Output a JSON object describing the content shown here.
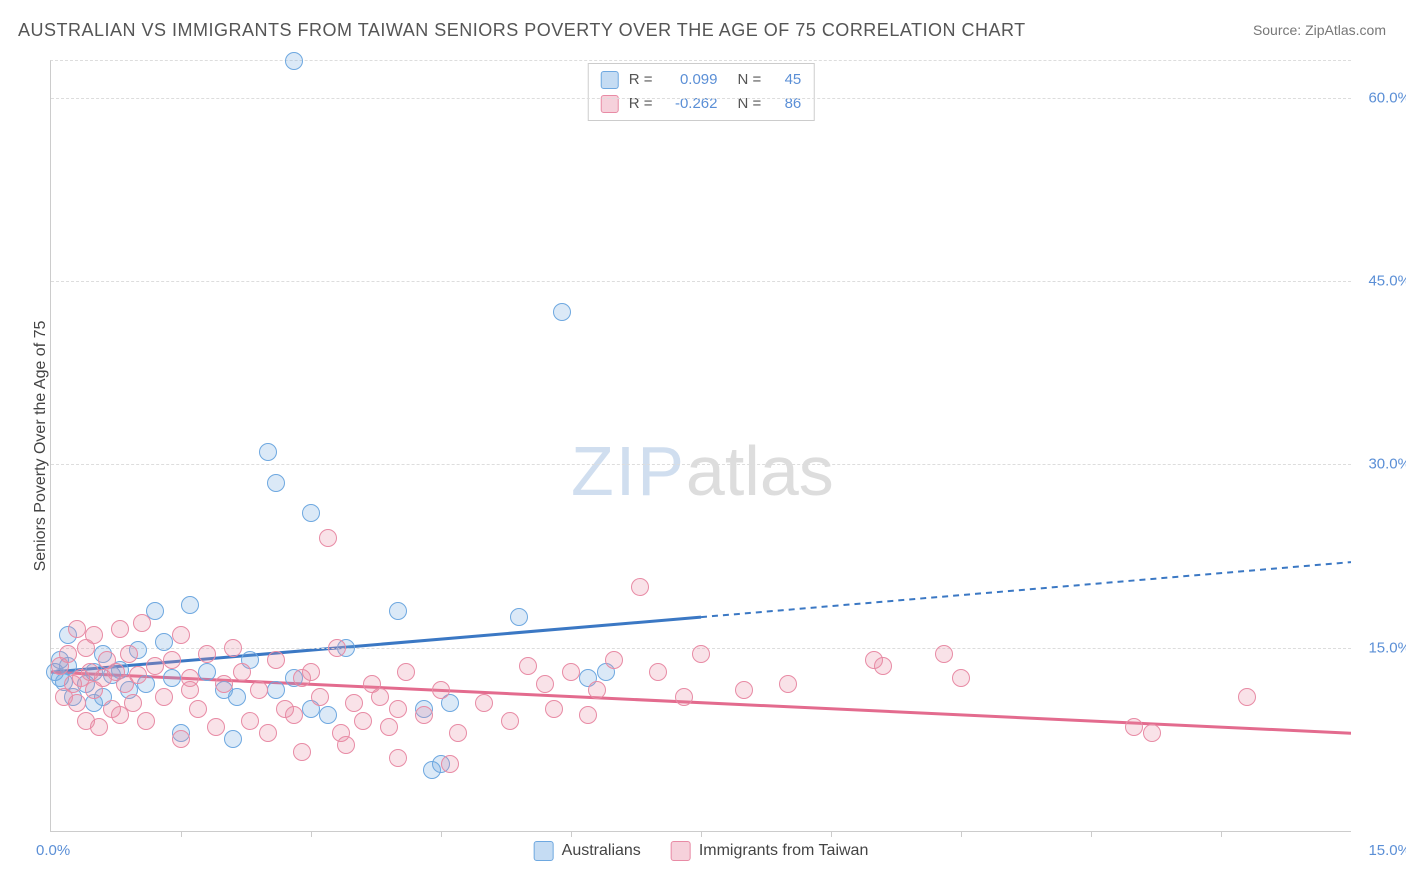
{
  "title": "AUSTRALIAN VS IMMIGRANTS FROM TAIWAN SENIORS POVERTY OVER THE AGE OF 75 CORRELATION CHART",
  "source": "Source: ZipAtlas.com",
  "y_axis_label": "Seniors Poverty Over the Age of 75",
  "watermark_a": "ZIP",
  "watermark_b": "atlas",
  "chart": {
    "type": "scatter",
    "xlim": [
      0,
      15
    ],
    "ylim": [
      0,
      63
    ],
    "x_tick_label_left": "0.0%",
    "x_tick_label_right": "15.0%",
    "y_ticks": [
      15,
      30,
      45,
      60
    ],
    "y_tick_labels": [
      "15.0%",
      "30.0%",
      "45.0%",
      "60.0%"
    ],
    "x_minor_ticks": [
      1.5,
      3.0,
      4.5,
      6.0,
      7.5,
      9.0,
      10.5,
      12.0,
      13.5
    ],
    "background_color": "#ffffff",
    "grid_color": "#dddddd",
    "axis_color": "#cccccc",
    "point_radius": 9,
    "point_border_width": 1.5,
    "point_fill_opacity": 0.25,
    "series": [
      {
        "id": "australians",
        "label": "Australians",
        "color_border": "#6ea8e0",
        "color_fill": "rgba(110,168,224,0.25)",
        "trend_color": "#3b78c4",
        "trend_width": 3,
        "r": "0.099",
        "n": "45",
        "trend": {
          "x1": 0,
          "y1": 13.0,
          "x2_solid": 7.5,
          "y2_solid": 17.5,
          "x2": 15,
          "y2": 22.0
        },
        "points": [
          [
            0.05,
            13.0
          ],
          [
            0.1,
            12.5
          ],
          [
            0.1,
            14.0
          ],
          [
            0.15,
            12.2
          ],
          [
            0.2,
            13.5
          ],
          [
            0.2,
            16.0
          ],
          [
            0.25,
            11.0
          ],
          [
            0.4,
            12.0
          ],
          [
            0.5,
            13.0
          ],
          [
            0.5,
            10.5
          ],
          [
            0.6,
            14.5
          ],
          [
            0.6,
            11.0
          ],
          [
            0.7,
            12.8
          ],
          [
            0.8,
            13.2
          ],
          [
            0.9,
            11.5
          ],
          [
            1.0,
            14.8
          ],
          [
            1.1,
            12.0
          ],
          [
            1.2,
            18.0
          ],
          [
            1.3,
            15.5
          ],
          [
            1.4,
            12.5
          ],
          [
            1.5,
            8.0
          ],
          [
            1.6,
            18.5
          ],
          [
            1.8,
            13.0
          ],
          [
            2.0,
            11.5
          ],
          [
            2.1,
            7.5
          ],
          [
            2.15,
            11.0
          ],
          [
            2.3,
            14.0
          ],
          [
            2.5,
            31.0
          ],
          [
            2.6,
            28.5
          ],
          [
            2.6,
            11.5
          ],
          [
            2.8,
            63.0
          ],
          [
            2.8,
            12.5
          ],
          [
            3.0,
            26.0
          ],
          [
            3.0,
            10.0
          ],
          [
            3.2,
            9.5
          ],
          [
            3.4,
            15.0
          ],
          [
            4.0,
            18.0
          ],
          [
            4.3,
            10.0
          ],
          [
            4.4,
            5.0
          ],
          [
            4.5,
            5.5
          ],
          [
            4.6,
            10.5
          ],
          [
            5.4,
            17.5
          ],
          [
            5.9,
            42.5
          ],
          [
            6.2,
            12.5
          ],
          [
            6.4,
            13.0
          ]
        ]
      },
      {
        "id": "taiwan",
        "label": "Immigrants from Taiwan",
        "color_border": "#e88ba5",
        "color_fill": "rgba(232,139,165,0.25)",
        "trend_color": "#e36b8e",
        "trend_width": 3,
        "r": "-0.262",
        "n": "86",
        "trend": {
          "x1": 0,
          "y1": 13.0,
          "x2_solid": 15,
          "y2_solid": 8.0,
          "x2": 15,
          "y2": 8.0
        },
        "points": [
          [
            0.1,
            13.5
          ],
          [
            0.15,
            11.0
          ],
          [
            0.2,
            14.5
          ],
          [
            0.25,
            12.0
          ],
          [
            0.3,
            16.5
          ],
          [
            0.3,
            10.5
          ],
          [
            0.35,
            12.5
          ],
          [
            0.4,
            15.0
          ],
          [
            0.4,
            9.0
          ],
          [
            0.45,
            13.0
          ],
          [
            0.5,
            11.5
          ],
          [
            0.5,
            16.0
          ],
          [
            0.55,
            8.5
          ],
          [
            0.6,
            12.5
          ],
          [
            0.65,
            14.0
          ],
          [
            0.7,
            10.0
          ],
          [
            0.75,
            13.0
          ],
          [
            0.8,
            16.5
          ],
          [
            0.8,
            9.5
          ],
          [
            0.85,
            12.0
          ],
          [
            0.9,
            14.5
          ],
          [
            0.95,
            10.5
          ],
          [
            1.0,
            12.8
          ],
          [
            1.05,
            17.0
          ],
          [
            1.1,
            9.0
          ],
          [
            1.2,
            13.5
          ],
          [
            1.3,
            11.0
          ],
          [
            1.4,
            14.0
          ],
          [
            1.5,
            16.0
          ],
          [
            1.5,
            7.5
          ],
          [
            1.6,
            12.5
          ],
          [
            1.6,
            11.5
          ],
          [
            1.7,
            10.0
          ],
          [
            1.8,
            14.5
          ],
          [
            1.9,
            8.5
          ],
          [
            2.0,
            12.0
          ],
          [
            2.1,
            15.0
          ],
          [
            2.2,
            13.0
          ],
          [
            2.3,
            9.0
          ],
          [
            2.4,
            11.5
          ],
          [
            2.5,
            8.0
          ],
          [
            2.6,
            14.0
          ],
          [
            2.7,
            10.0
          ],
          [
            2.8,
            9.5
          ],
          [
            2.9,
            12.5
          ],
          [
            2.9,
            6.5
          ],
          [
            3.0,
            13.0
          ],
          [
            3.1,
            11.0
          ],
          [
            3.2,
            24.0
          ],
          [
            3.3,
            15.0
          ],
          [
            3.35,
            8.0
          ],
          [
            3.4,
            7.0
          ],
          [
            3.5,
            10.5
          ],
          [
            3.6,
            9.0
          ],
          [
            3.7,
            12.0
          ],
          [
            3.8,
            11.0
          ],
          [
            3.9,
            8.5
          ],
          [
            4.0,
            10.0
          ],
          [
            4.0,
            6.0
          ],
          [
            4.1,
            13.0
          ],
          [
            4.3,
            9.5
          ],
          [
            4.5,
            11.5
          ],
          [
            4.6,
            5.5
          ],
          [
            4.7,
            8.0
          ],
          [
            5.0,
            10.5
          ],
          [
            5.3,
            9.0
          ],
          [
            5.5,
            13.5
          ],
          [
            5.7,
            12.0
          ],
          [
            5.8,
            10.0
          ],
          [
            6.0,
            13.0
          ],
          [
            6.2,
            9.5
          ],
          [
            6.3,
            11.5
          ],
          [
            6.5,
            14.0
          ],
          [
            6.8,
            20.0
          ],
          [
            7.0,
            13.0
          ],
          [
            7.3,
            11.0
          ],
          [
            7.5,
            14.5
          ],
          [
            8.0,
            11.5
          ],
          [
            8.5,
            12.0
          ],
          [
            9.5,
            14.0
          ],
          [
            9.6,
            13.5
          ],
          [
            10.3,
            14.5
          ],
          [
            10.5,
            12.5
          ],
          [
            12.5,
            8.5
          ],
          [
            12.7,
            8.0
          ],
          [
            13.8,
            11.0
          ]
        ]
      }
    ]
  },
  "legend": {
    "items": [
      {
        "label": "Australians",
        "fill": "rgba(110,168,224,0.4)",
        "border": "#6ea8e0"
      },
      {
        "label": "Immigrants from Taiwan",
        "fill": "rgba(232,139,165,0.4)",
        "border": "#e88ba5"
      }
    ]
  }
}
